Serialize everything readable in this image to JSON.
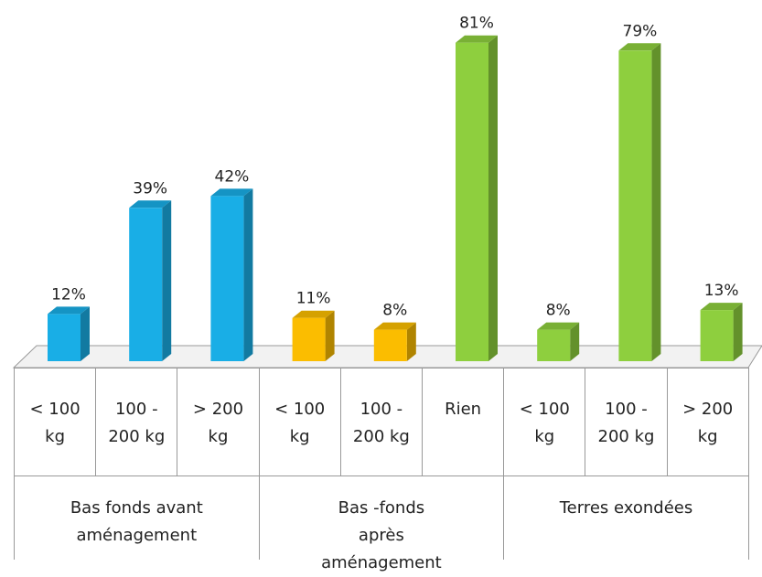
{
  "chart_data": {
    "type": "bar",
    "groups": [
      {
        "label": "Bas fonds avant aménagement",
        "categories": [
          "< 100 kg",
          "100 - 200 kg",
          "> 200 kg"
        ],
        "values": [
          12,
          39,
          42
        ],
        "value_labels": [
          "12%",
          "39%",
          "42%"
        ],
        "colors": [
          "#19aee6",
          "#19aee6",
          "#19aee6"
        ]
      },
      {
        "label": "Bas -fonds après aménagement",
        "categories": [
          "< 100 kg",
          "100 - 200 kg",
          "Rien"
        ],
        "values": [
          11,
          8,
          81
        ],
        "value_labels": [
          "11%",
          "8%",
          "81%"
        ],
        "colors": [
          "#fbbd00",
          "#fbbd00",
          "#8ecf3e"
        ]
      },
      {
        "label": "Terres exondées",
        "categories": [
          "< 100 kg",
          "100 - 200 kg",
          "> 200 kg"
        ],
        "values": [
          8,
          79,
          13
        ],
        "value_labels": [
          "8%",
          "79%",
          "13%"
        ],
        "colors": [
          "#8ecf3e",
          "#8ecf3e",
          "#8ecf3e"
        ]
      }
    ]
  }
}
